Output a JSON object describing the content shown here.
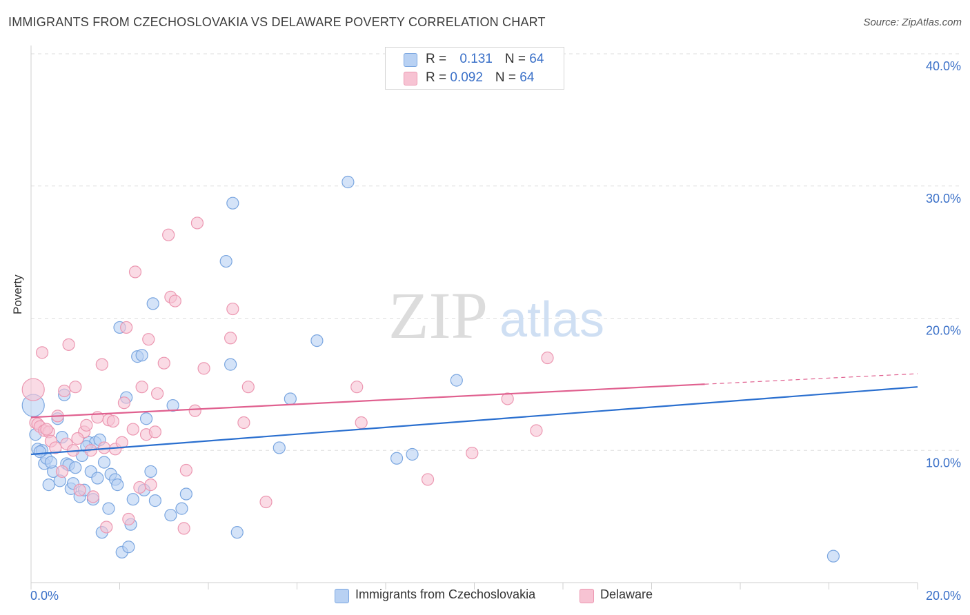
{
  "title": "IMMIGRANTS FROM CZECHOSLOVAKIA VS DELAWARE POVERTY CORRELATION CHART",
  "source": "Source: ZipAtlas.com",
  "watermark": {
    "zip": "ZIP",
    "atlas": "atlas"
  },
  "legend": {
    "series1": {
      "r_label": "R = ",
      "r_value": "0.131",
      "n_label": "N = ",
      "n_value": "64"
    },
    "series2": {
      "r_label": "R = ",
      "r_value": "0.092",
      "n_label": "N = ",
      "n_value": "64"
    }
  },
  "bottom_legend": {
    "series1": "Immigrants from Czechoslovakia",
    "series2": "Delaware"
  },
  "colors": {
    "blue_fill": "#b8d1f3",
    "blue_stroke": "#7aa6e0",
    "blue_line": "#2a6fcf",
    "pink_fill": "#f7c3d3",
    "pink_stroke": "#ec97b1",
    "pink_line": "#e0608f",
    "tick_text": "#3a70c8",
    "grid": "#dddddd"
  },
  "chart_data": {
    "type": "scatter",
    "title": "IMMIGRANTS FROM CZECHOSLOVAKIA VS DELAWARE POVERTY CORRELATION CHART",
    "xlabel": "",
    "ylabel": "Poverty",
    "xlim": [
      0,
      20
    ],
    "ylim": [
      0,
      40
    ],
    "x_tick_labels": [
      "0.0%",
      "20.0%"
    ],
    "y_ticks": [
      10,
      20,
      30,
      40
    ],
    "y_tick_labels": [
      "10.0%",
      "20.0%",
      "30.0%",
      "40.0%"
    ],
    "series": [
      {
        "name": "Immigrants from Czechoslovakia",
        "trend": {
          "x0": 0,
          "y0": 9.7,
          "x1": 20,
          "y1": 14.8
        },
        "points": [
          [
            0.05,
            13.4
          ],
          [
            0.1,
            11.2
          ],
          [
            0.15,
            10.1
          ],
          [
            0.25,
            10.0
          ],
          [
            0.3,
            9.0
          ],
          [
            0.35,
            9.4
          ],
          [
            0.4,
            7.4
          ],
          [
            0.5,
            8.4
          ],
          [
            0.6,
            12.4
          ],
          [
            0.65,
            7.7
          ],
          [
            0.7,
            11.0
          ],
          [
            0.75,
            14.2
          ],
          [
            0.8,
            9.0
          ],
          [
            0.85,
            8.9
          ],
          [
            0.9,
            7.1
          ],
          [
            0.95,
            7.5
          ],
          [
            1.0,
            8.7
          ],
          [
            1.1,
            6.5
          ],
          [
            1.15,
            9.6
          ],
          [
            1.2,
            7.0
          ],
          [
            1.3,
            10.6
          ],
          [
            1.35,
            8.4
          ],
          [
            1.4,
            6.3
          ],
          [
            1.45,
            10.6
          ],
          [
            1.5,
            7.9
          ],
          [
            1.55,
            10.8
          ],
          [
            1.6,
            3.8
          ],
          [
            1.65,
            9.1
          ],
          [
            1.75,
            5.6
          ],
          [
            1.8,
            8.2
          ],
          [
            1.9,
            7.8
          ],
          [
            1.95,
            7.4
          ],
          [
            2.0,
            19.3
          ],
          [
            2.05,
            2.3
          ],
          [
            2.15,
            14.0
          ],
          [
            2.2,
            2.7
          ],
          [
            2.25,
            4.4
          ],
          [
            2.3,
            6.3
          ],
          [
            2.4,
            17.1
          ],
          [
            2.5,
            17.2
          ],
          [
            2.55,
            7.0
          ],
          [
            2.6,
            12.4
          ],
          [
            2.7,
            8.4
          ],
          [
            2.75,
            21.1
          ],
          [
            2.8,
            6.2
          ],
          [
            3.15,
            5.1
          ],
          [
            3.2,
            13.4
          ],
          [
            3.4,
            5.6
          ],
          [
            3.5,
            6.7
          ],
          [
            4.4,
            24.3
          ],
          [
            4.5,
            16.5
          ],
          [
            4.55,
            28.7
          ],
          [
            4.65,
            3.8
          ],
          [
            5.6,
            10.2
          ],
          [
            5.85,
            13.9
          ],
          [
            6.45,
            18.3
          ],
          [
            7.15,
            30.3
          ],
          [
            8.25,
            9.4
          ],
          [
            8.6,
            9.7
          ],
          [
            9.6,
            15.3
          ],
          [
            18.1,
            2.0
          ],
          [
            1.25,
            10.3
          ],
          [
            0.45,
            9.1
          ],
          [
            0.2,
            9.9
          ]
        ]
      },
      {
        "name": "Delaware",
        "trend": {
          "x0": 0,
          "y0": 12.5,
          "x1": 20,
          "y1": 15.8,
          "solid_until": 15.2
        },
        "points": [
          [
            0.05,
            14.6
          ],
          [
            0.1,
            12.1
          ],
          [
            0.15,
            12.0
          ],
          [
            0.2,
            11.8
          ],
          [
            0.25,
            17.4
          ],
          [
            0.3,
            11.5
          ],
          [
            0.4,
            11.4
          ],
          [
            0.45,
            10.7
          ],
          [
            0.55,
            10.2
          ],
          [
            0.6,
            12.6
          ],
          [
            0.7,
            8.4
          ],
          [
            0.75,
            14.5
          ],
          [
            0.8,
            10.5
          ],
          [
            0.85,
            18.0
          ],
          [
            0.95,
            10.0
          ],
          [
            1.0,
            14.8
          ],
          [
            1.1,
            7.0
          ],
          [
            1.2,
            11.4
          ],
          [
            1.25,
            11.9
          ],
          [
            1.35,
            10.0
          ],
          [
            1.4,
            6.5
          ],
          [
            1.5,
            12.5
          ],
          [
            1.6,
            16.5
          ],
          [
            1.65,
            10.2
          ],
          [
            1.7,
            4.2
          ],
          [
            1.75,
            12.3
          ],
          [
            1.85,
            12.2
          ],
          [
            1.9,
            10.1
          ],
          [
            2.05,
            10.6
          ],
          [
            2.1,
            13.6
          ],
          [
            2.15,
            19.3
          ],
          [
            2.2,
            4.8
          ],
          [
            2.3,
            11.6
          ],
          [
            2.35,
            23.5
          ],
          [
            2.45,
            7.2
          ],
          [
            2.5,
            14.8
          ],
          [
            2.6,
            11.2
          ],
          [
            2.65,
            18.4
          ],
          [
            2.7,
            7.4
          ],
          [
            2.8,
            11.4
          ],
          [
            2.85,
            14.3
          ],
          [
            3.0,
            16.6
          ],
          [
            3.1,
            26.3
          ],
          [
            3.15,
            21.6
          ],
          [
            3.25,
            21.3
          ],
          [
            3.45,
            4.1
          ],
          [
            3.5,
            8.5
          ],
          [
            3.7,
            13.0
          ],
          [
            3.75,
            27.2
          ],
          [
            3.9,
            16.2
          ],
          [
            4.5,
            18.5
          ],
          [
            4.55,
            20.7
          ],
          [
            4.8,
            12.1
          ],
          [
            4.9,
            14.8
          ],
          [
            5.3,
            6.1
          ],
          [
            7.35,
            14.8
          ],
          [
            7.45,
            12.1
          ],
          [
            8.95,
            7.8
          ],
          [
            9.95,
            9.8
          ],
          [
            10.75,
            13.9
          ],
          [
            11.4,
            11.5
          ],
          [
            11.65,
            17.0
          ],
          [
            0.35,
            11.6
          ],
          [
            1.05,
            10.9
          ]
        ]
      }
    ]
  }
}
